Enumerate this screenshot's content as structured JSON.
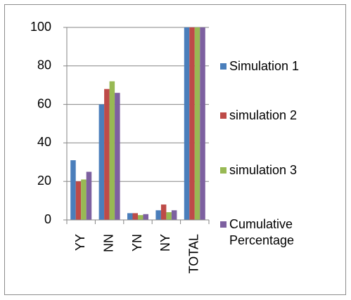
{
  "chart_data": {
    "type": "bar",
    "categories": [
      "YY",
      "NN",
      "YN",
      "NY",
      "TOTAL"
    ],
    "series": [
      {
        "name": "Simulation 1",
        "color": "#4a7ebb",
        "values": [
          31,
          60,
          3.5,
          5,
          100
        ]
      },
      {
        "name": "simulation 2",
        "color": "#be4b48",
        "values": [
          20,
          68,
          3.5,
          8,
          100
        ]
      },
      {
        "name": "simulation 3",
        "color": "#98b954",
        "values": [
          21,
          72,
          2.5,
          4,
          100
        ]
      },
      {
        "name": "Cumulative Percentage",
        "color": "#7d60a0",
        "values": [
          25,
          66,
          3,
          5,
          100
        ]
      }
    ],
    "ylim": [
      0,
      100
    ],
    "yticks": [
      0,
      20,
      40,
      60,
      80,
      100
    ],
    "grid": true,
    "legend": "right"
  }
}
